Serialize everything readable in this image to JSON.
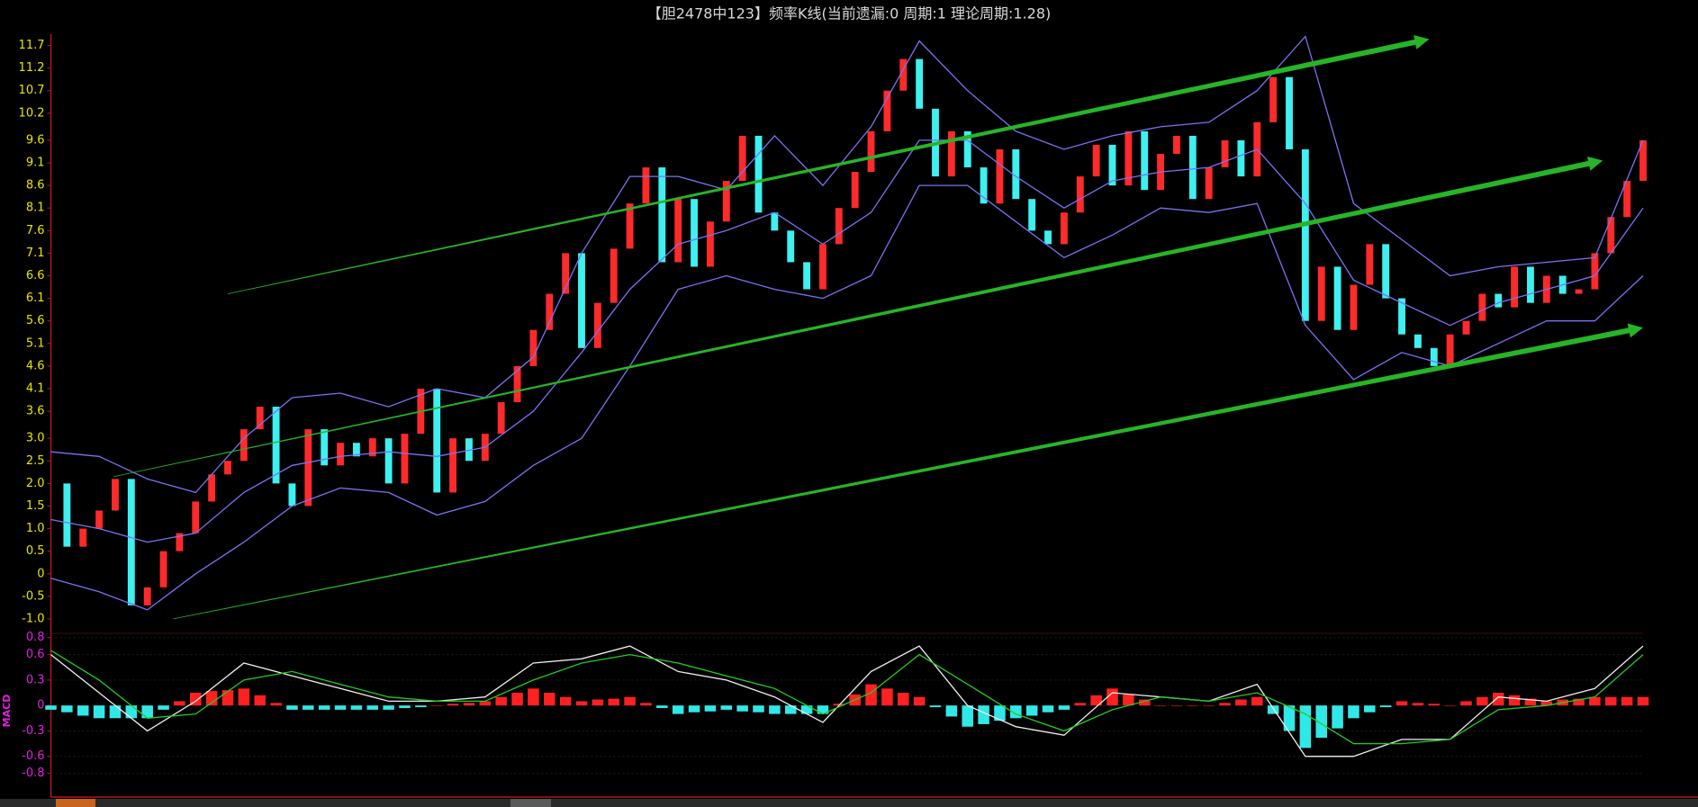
{
  "chart_data": [
    {
      "type": "kline",
      "title": "【胆2478中123】频率K线(当前遗漏:0 周期:1 理论周期:1.28)",
      "ylim": [
        -1.32,
        11.95
      ],
      "yticks": [
        {
          "value": -1,
          "label": "-1.0"
        },
        -0.5,
        0,
        0.5,
        {
          "value": 1,
          "label": "1.0"
        },
        1.5,
        {
          "value": 2,
          "label": "2.0"
        },
        2.5,
        {
          "value": 3,
          "label": "3.0"
        },
        3.6,
        4.1,
        4.6,
        5.1,
        5.6,
        6.1,
        6.6,
        7.1,
        7.6,
        8.1,
        8.6,
        9.1,
        9.6,
        10.2,
        10.7,
        11.2,
        11.7
      ],
      "tick_color": "#e6e600",
      "grid": false,
      "series": [
        {
          "type": "candlestick",
          "up_color": "#ff2a2a",
          "down_color": "#3ef0f0",
          "values": [
            2.0,
            0.6,
            1.0,
            1.4,
            2.1,
            -0.7,
            -0.3,
            0.5,
            0.9,
            1.6,
            2.2,
            2.5,
            3.2,
            3.7,
            2.0,
            1.5,
            3.2,
            2.4,
            2.9,
            2.6,
            3.0,
            2.0,
            3.1,
            4.1,
            1.8,
            3.0,
            2.5,
            3.1,
            3.8,
            4.6,
            5.4,
            6.2,
            7.1,
            5.0,
            6.0,
            7.2,
            8.2,
            9.0,
            6.9,
            8.3,
            6.8,
            7.8,
            8.7,
            9.7,
            8.0,
            7.6,
            6.9,
            6.3,
            7.3,
            8.1,
            8.9,
            9.8,
            10.7,
            11.4,
            10.3,
            8.8,
            9.8,
            9.0,
            8.2,
            9.4,
            8.3,
            7.6,
            7.3,
            8.0,
            8.8,
            9.5,
            8.6,
            9.8,
            8.5,
            9.3,
            9.7,
            8.3,
            9.0,
            9.6,
            8.8,
            10.0,
            11.0,
            9.4,
            5.6,
            6.8,
            5.4,
            6.4,
            7.3,
            6.1,
            5.3,
            5.0,
            4.6,
            5.3,
            5.6,
            6.2,
            5.9,
            6.8,
            6.0,
            6.6,
            6.2,
            6.3,
            7.1,
            7.9,
            8.7,
            9.6
          ]
        },
        {
          "type": "line",
          "color": "#7a72f2",
          "x": [
            0,
            3,
            6,
            9,
            12,
            15,
            18,
            21,
            24,
            27,
            30,
            33,
            36,
            39,
            42,
            45,
            48,
            51,
            54,
            57,
            60,
            63,
            66,
            69,
            72,
            75,
            78,
            81,
            84,
            87,
            90,
            93,
            96,
            99
          ],
          "values": [
            2.7,
            2.6,
            2.1,
            1.8,
            3.0,
            3.9,
            4.0,
            3.7,
            4.1,
            3.9,
            4.8,
            7.1,
            8.8,
            8.8,
            8.5,
            9.7,
            8.6,
            9.9,
            11.8,
            10.7,
            9.8,
            9.4,
            9.7,
            9.9,
            10.0,
            10.7,
            11.9,
            8.2,
            7.4,
            6.6,
            6.8,
            6.9,
            7.0,
            9.6
          ]
        },
        {
          "type": "line",
          "color": "#7a72f2",
          "x": [
            0,
            3,
            6,
            9,
            12,
            15,
            18,
            21,
            24,
            27,
            30,
            33,
            36,
            39,
            42,
            45,
            48,
            51,
            54,
            57,
            60,
            63,
            66,
            69,
            72,
            75,
            78,
            81,
            84,
            87,
            90,
            93,
            96,
            99
          ],
          "values": [
            1.2,
            1.0,
            0.7,
            0.9,
            1.8,
            2.4,
            2.6,
            2.7,
            2.6,
            2.8,
            3.6,
            4.9,
            6.3,
            7.3,
            7.6,
            8.0,
            7.3,
            8.0,
            9.6,
            9.6,
            8.8,
            8.1,
            8.7,
            8.9,
            9.0,
            9.4,
            8.2,
            6.5,
            6.0,
            5.5,
            6.0,
            6.3,
            6.6,
            8.1
          ]
        },
        {
          "type": "line",
          "color": "#7a72f2",
          "x": [
            0,
            3,
            6,
            9,
            12,
            15,
            18,
            21,
            24,
            27,
            30,
            33,
            36,
            39,
            42,
            45,
            48,
            51,
            54,
            57,
            60,
            63,
            66,
            69,
            72,
            75,
            78,
            81,
            84,
            87,
            90,
            93,
            96,
            99
          ],
          "values": [
            -0.1,
            -0.4,
            -0.8,
            0.0,
            0.7,
            1.5,
            1.9,
            1.8,
            1.3,
            1.6,
            2.4,
            3.0,
            4.6,
            6.3,
            6.6,
            6.3,
            6.1,
            6.6,
            8.6,
            8.6,
            7.8,
            7.0,
            7.5,
            8.1,
            8.0,
            8.2,
            5.5,
            4.3,
            4.9,
            4.6,
            5.1,
            5.6,
            5.6,
            6.6
          ]
        }
      ],
      "trend_lines": [
        {
          "color": "#26b526",
          "x": [
            11,
            85.7
          ],
          "values": [
            6.2,
            11.84
          ]
        },
        {
          "color": "#26b526",
          "x": [
            3.9,
            96.5
          ],
          "values": [
            2.15,
            9.15
          ]
        },
        {
          "color": "#26b526",
          "x": [
            7.6,
            99
          ],
          "values": [
            -1.0,
            5.45
          ]
        }
      ]
    },
    {
      "type": "macd",
      "ylabel": "MACD",
      "ylim": [
        -1.08,
        0.85
      ],
      "yticks": [
        0.8,
        0.6,
        0.3,
        0,
        -0.3,
        -0.6,
        -0.8
      ],
      "tick_color": "#e020e0",
      "grid": true,
      "series": [
        {
          "type": "bar",
          "up_color": "#ff2020",
          "down_color": "#30e8e8",
          "values": [
            -0.05,
            -0.08,
            -0.12,
            -0.15,
            -0.15,
            -0.15,
            -0.15,
            -0.05,
            0.05,
            0.15,
            0.17,
            0.18,
            0.2,
            0.12,
            0.03,
            -0.05,
            -0.05,
            -0.05,
            -0.05,
            -0.05,
            -0.05,
            -0.05,
            -0.03,
            -0.02,
            0,
            0.02,
            0.03,
            0.05,
            0.1,
            0.15,
            0.2,
            0.15,
            0.1,
            0.05,
            0.07,
            0.08,
            0.1,
            0.03,
            -0.03,
            -0.1,
            -0.08,
            -0.07,
            -0.05,
            -0.07,
            -0.08,
            -0.1,
            -0.1,
            -0.1,
            -0.1,
            0.02,
            0.13,
            0.25,
            0.2,
            0.15,
            0.1,
            -0.02,
            -0.13,
            -0.25,
            -0.22,
            -0.18,
            -0.15,
            -0.12,
            -0.08,
            -0.05,
            0.03,
            0.12,
            0.2,
            0.13,
            0.07,
            0,
            0,
            0,
            0,
            0.03,
            0.07,
            0.1,
            -0.1,
            -0.3,
            -0.5,
            -0.38,
            -0.27,
            -0.15,
            -0.08,
            -0.02,
            0.05,
            0.03,
            0.02,
            0,
            0.05,
            0.1,
            0.15,
            0.12,
            0.08,
            0.05,
            0.07,
            0.08,
            0.1,
            0.1,
            0.1,
            0.1
          ]
        },
        {
          "type": "line",
          "color": "#f0f0f0",
          "x": [
            0,
            3,
            6,
            9,
            12,
            15,
            18,
            21,
            24,
            27,
            30,
            33,
            36,
            39,
            42,
            45,
            48,
            51,
            54,
            57,
            60,
            63,
            66,
            69,
            72,
            75,
            78,
            81,
            84,
            87,
            90,
            93,
            96,
            99
          ],
          "values": [
            0.6,
            0.15,
            -0.3,
            0.05,
            0.5,
            0.35,
            0.2,
            0.05,
            0.05,
            0.1,
            0.5,
            0.55,
            0.7,
            0.4,
            0.3,
            0.1,
            -0.2,
            0.4,
            0.7,
            0.0,
            -0.25,
            -0.35,
            0.15,
            0.1,
            0.05,
            0.25,
            -0.6,
            -0.6,
            -0.4,
            -0.4,
            0.1,
            0.05,
            0.2,
            0.7
          ]
        },
        {
          "type": "line",
          "color": "#22cc22",
          "x": [
            0,
            3,
            6,
            9,
            12,
            15,
            18,
            21,
            24,
            27,
            30,
            33,
            36,
            39,
            42,
            45,
            48,
            51,
            54,
            57,
            60,
            63,
            66,
            69,
            72,
            75,
            78,
            81,
            84,
            87,
            90,
            93,
            96,
            99
          ],
          "values": [
            0.65,
            0.3,
            -0.15,
            -0.1,
            0.3,
            0.4,
            0.25,
            0.1,
            0.05,
            0.05,
            0.3,
            0.5,
            0.6,
            0.5,
            0.35,
            0.2,
            -0.1,
            0.15,
            0.6,
            0.25,
            -0.1,
            -0.3,
            -0.05,
            0.1,
            0.05,
            0.15,
            -0.1,
            -0.45,
            -0.45,
            -0.4,
            -0.05,
            0.0,
            0.1,
            0.6
          ]
        }
      ]
    }
  ]
}
